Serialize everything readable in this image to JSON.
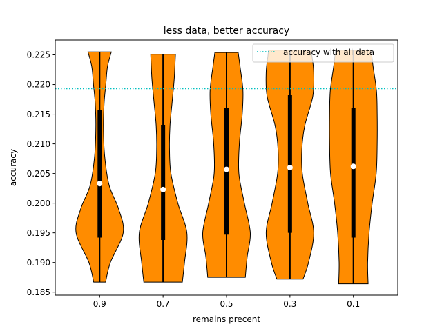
{
  "chart_data": {
    "type": "violin",
    "title": "less data, better accuracy",
    "xlabel": "remains precent",
    "ylabel": "accuracy",
    "categories": [
      "0.9",
      "0.7",
      "0.5",
      "0.3",
      "0.1"
    ],
    "ylim": [
      0.1845,
      0.2275
    ],
    "yticks": [
      0.185,
      0.19,
      0.195,
      0.2,
      0.205,
      0.21,
      0.215,
      0.22,
      0.225
    ],
    "ytick_labels": [
      "0.185",
      "0.190",
      "0.195",
      "0.200",
      "0.205",
      "0.210",
      "0.215",
      "0.220",
      "0.225"
    ],
    "grid": false,
    "legend": {
      "placement": "top-right",
      "entries": [
        "accuracy with all data"
      ]
    },
    "reference_line": {
      "name": "accuracy with all data",
      "y": 0.2193,
      "color": "#00bfbf",
      "style": "dotted"
    },
    "violin_color": "#ff8c00",
    "violins": [
      {
        "category": "0.9",
        "min": 0.1867,
        "q1": 0.1942,
        "median": 0.2033,
        "q3": 0.2157,
        "max": 0.2255,
        "profile": [
          [
            0.1867,
            0.25
          ],
          [
            0.19,
            0.45
          ],
          [
            0.195,
            0.99
          ],
          [
            0.199,
            0.8
          ],
          [
            0.203,
            0.4
          ],
          [
            0.208,
            0.21
          ],
          [
            0.213,
            0.16
          ],
          [
            0.217,
            0.19
          ],
          [
            0.22,
            0.26
          ],
          [
            0.223,
            0.33
          ],
          [
            0.2255,
            0.49
          ]
        ]
      },
      {
        "category": "0.7",
        "min": 0.1867,
        "q1": 0.1938,
        "median": 0.2023,
        "q3": 0.2132,
        "max": 0.2251,
        "profile": [
          [
            0.1867,
            0.81
          ],
          [
            0.19,
            0.9
          ],
          [
            0.195,
            1.0
          ],
          [
            0.2,
            0.62
          ],
          [
            0.205,
            0.33
          ],
          [
            0.209,
            0.27
          ],
          [
            0.213,
            0.29
          ],
          [
            0.217,
            0.38
          ],
          [
            0.221,
            0.47
          ],
          [
            0.2251,
            0.52
          ]
        ]
      },
      {
        "category": "0.5",
        "min": 0.1875,
        "q1": 0.1947,
        "median": 0.2057,
        "q3": 0.216,
        "max": 0.2254,
        "profile": [
          [
            0.1875,
            0.79
          ],
          [
            0.191,
            0.87
          ],
          [
            0.195,
            1.0
          ],
          [
            0.2,
            0.75
          ],
          [
            0.205,
            0.52
          ],
          [
            0.21,
            0.54
          ],
          [
            0.215,
            0.66
          ],
          [
            0.219,
            0.69
          ],
          [
            0.223,
            0.57
          ],
          [
            0.2254,
            0.49
          ]
        ]
      },
      {
        "category": "0.3",
        "min": 0.1872,
        "q1": 0.195,
        "median": 0.206,
        "q3": 0.2182,
        "max": 0.2258,
        "profile": [
          [
            0.1872,
            0.55
          ],
          [
            0.19,
            0.78
          ],
          [
            0.195,
            1.0
          ],
          [
            0.2,
            0.75
          ],
          [
            0.205,
            0.52
          ],
          [
            0.209,
            0.5
          ],
          [
            0.213,
            0.62
          ],
          [
            0.218,
            0.96
          ],
          [
            0.222,
            1.0
          ],
          [
            0.225,
            0.92
          ],
          [
            0.2258,
            0.9
          ]
        ]
      },
      {
        "category": "0.1",
        "min": 0.1864,
        "q1": 0.1942,
        "median": 0.2062,
        "q3": 0.216,
        "max": 0.2258,
        "profile": [
          [
            0.1864,
            0.62
          ],
          [
            0.19,
            0.6
          ],
          [
            0.195,
            0.66
          ],
          [
            0.2,
            0.79
          ],
          [
            0.205,
            0.96
          ],
          [
            0.21,
            1.0
          ],
          [
            0.215,
            1.0
          ],
          [
            0.219,
            0.97
          ],
          [
            0.223,
            0.83
          ],
          [
            0.2258,
            0.75
          ]
        ]
      }
    ]
  }
}
